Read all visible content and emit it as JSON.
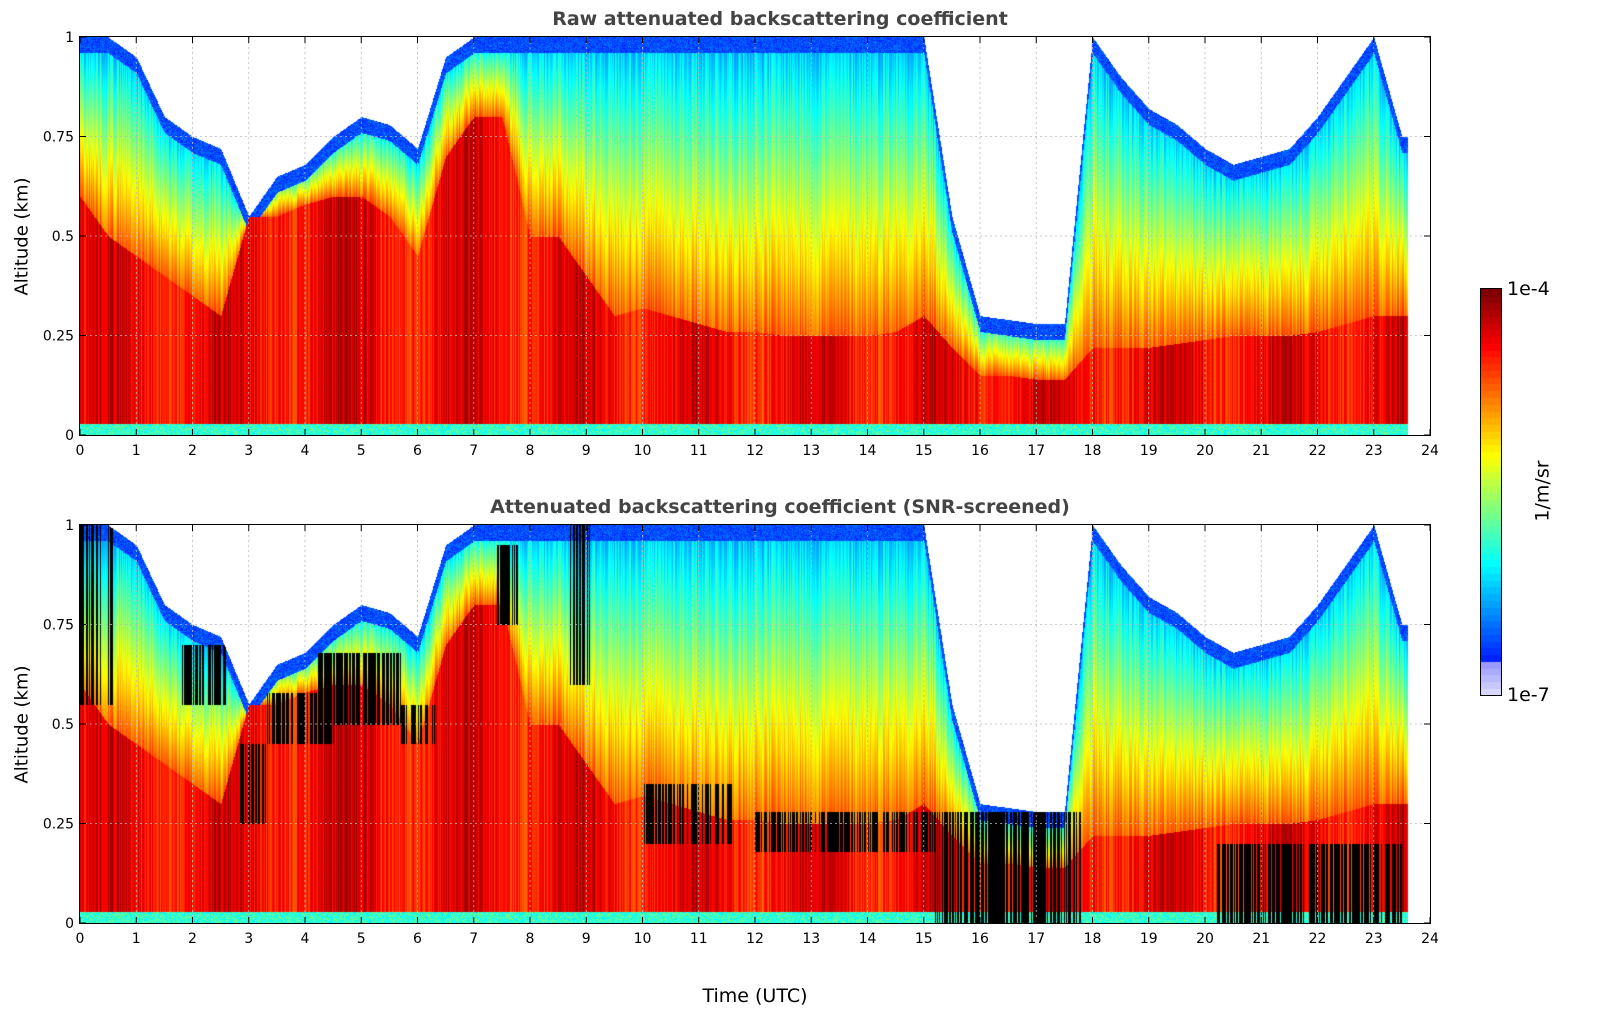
{
  "chart_data": [
    {
      "type": "heatmap",
      "title": "Raw attenuated backscattering coefficient",
      "xlabel": "",
      "ylabel": "Altitude (km)",
      "xlim": [
        0,
        24
      ],
      "ylim": [
        0,
        1
      ],
      "x_ticks": [
        "0",
        "1",
        "2",
        "3",
        "4",
        "5",
        "6",
        "7",
        "8",
        "9",
        "10",
        "11",
        "12",
        "13",
        "14",
        "15",
        "16",
        "17",
        "18",
        "19",
        "20",
        "21",
        "22",
        "23",
        "24"
      ],
      "y_ticks": [
        "0",
        "0.25",
        "0.5",
        "0.75",
        "1"
      ],
      "grid": true,
      "data_end_time_utc": 23.6,
      "profile_times_utc": [
        0,
        0.5,
        1,
        1.5,
        2,
        2.5,
        3,
        3.5,
        4,
        4.5,
        5,
        5.5,
        6,
        6.5,
        7,
        7.5,
        8,
        8.5,
        9,
        9.5,
        10,
        10.5,
        11,
        11.5,
        12,
        12.5,
        13,
        13.5,
        14,
        14.5,
        15,
        15.5,
        16,
        16.5,
        17,
        17.5,
        18,
        18.5,
        19,
        19.5,
        20,
        20.5,
        21,
        21.5,
        22,
        22.5,
        23,
        23.5
      ],
      "signal_top_km": [
        1,
        1,
        0.95,
        0.8,
        0.75,
        0.72,
        0.55,
        0.65,
        0.68,
        0.75,
        0.8,
        0.78,
        0.72,
        0.95,
        1,
        1,
        1,
        1,
        1,
        1,
        1,
        1,
        1,
        1,
        1,
        1,
        1,
        1,
        1,
        1,
        1,
        0.55,
        0.3,
        0.29,
        0.28,
        0.28,
        1,
        0.9,
        0.82,
        0.78,
        0.72,
        0.68,
        0.7,
        0.72,
        0.8,
        0.9,
        1,
        0.75
      ],
      "low_layer_top_km": [
        0.6,
        0.5,
        0.45,
        0.4,
        0.35,
        0.3,
        0.55,
        0.55,
        0.58,
        0.6,
        0.6,
        0.55,
        0.45,
        0.7,
        0.8,
        0.8,
        0.5,
        0.5,
        0.4,
        0.3,
        0.32,
        0.3,
        0.28,
        0.26,
        0.26,
        0.25,
        0.25,
        0.25,
        0.25,
        0.26,
        0.3,
        0.22,
        0.15,
        0.15,
        0.14,
        0.14,
        0.22,
        0.22,
        0.22,
        0.23,
        0.24,
        0.25,
        0.25,
        0.25,
        0.26,
        0.28,
        0.3,
        0.3
      ]
    },
    {
      "type": "heatmap",
      "title": "Attenuated backscattering coefficient (SNR-screened)",
      "xlabel": "Time (UTC)",
      "ylabel": "Altitude (km)",
      "xlim": [
        0,
        24
      ],
      "ylim": [
        0,
        1
      ],
      "x_ticks": [
        "0",
        "1",
        "2",
        "3",
        "4",
        "5",
        "6",
        "7",
        "8",
        "9",
        "10",
        "11",
        "12",
        "13",
        "14",
        "15",
        "16",
        "17",
        "18",
        "19",
        "20",
        "21",
        "22",
        "23",
        "24"
      ],
      "y_ticks": [
        "0",
        "0.25",
        "0.5",
        "0.75",
        "1"
      ],
      "grid": true,
      "screened_color": "#000000",
      "screened_regions": [
        {
          "t0": 0.0,
          "t1": 0.6,
          "z0": 0.55,
          "z1": 1.0
        },
        {
          "t0": 1.8,
          "t1": 2.6,
          "z0": 0.55,
          "z1": 0.7
        },
        {
          "t0": 2.8,
          "t1": 3.3,
          "z0": 0.25,
          "z1": 0.45
        },
        {
          "t0": 3.3,
          "t1": 4.5,
          "z0": 0.45,
          "z1": 0.58
        },
        {
          "t0": 4.2,
          "t1": 5.7,
          "z0": 0.5,
          "z1": 0.68
        },
        {
          "t0": 5.7,
          "t1": 6.3,
          "z0": 0.45,
          "z1": 0.55
        },
        {
          "t0": 7.4,
          "t1": 7.8,
          "z0": 0.75,
          "z1": 0.95
        },
        {
          "t0": 8.7,
          "t1": 9.1,
          "z0": 0.6,
          "z1": 1.0
        },
        {
          "t0": 10.0,
          "t1": 11.6,
          "z0": 0.2,
          "z1": 0.35
        },
        {
          "t0": 12.0,
          "t1": 15.2,
          "z0": 0.18,
          "z1": 0.28
        },
        {
          "t0": 15.2,
          "t1": 17.8,
          "z0": 0.0,
          "z1": 0.28
        },
        {
          "t0": 20.2,
          "t1": 23.5,
          "z0": 0.0,
          "z1": 0.2
        }
      ]
    }
  ],
  "colorbar": {
    "max_label": "1e-4",
    "min_label": "1e-7",
    "unit": "1/m/sr",
    "colormap": "jet"
  }
}
